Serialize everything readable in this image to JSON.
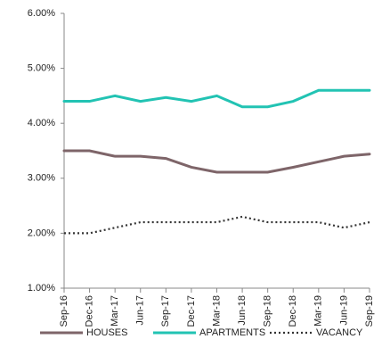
{
  "chart_data": {
    "type": "line",
    "categories": [
      "Sep-16",
      "Dec-16",
      "Mar-17",
      "Jun-17",
      "Sep-17",
      "Dec-17",
      "Mar-18",
      "Jun-18",
      "Sep-18",
      "Dec-18",
      "Mar-19",
      "Jun-19",
      "Sep-19"
    ],
    "series": [
      {
        "name": "HOUSES",
        "color": "#7e6569",
        "style": "solid",
        "values": [
          3.5,
          3.5,
          3.4,
          3.4,
          3.36,
          3.2,
          3.11,
          3.11,
          3.11,
          3.2,
          3.3,
          3.4,
          3.44
        ]
      },
      {
        "name": "APARTMENTS",
        "color": "#22c3b3",
        "style": "solid",
        "values": [
          4.4,
          4.4,
          4.5,
          4.4,
          4.47,
          4.4,
          4.5,
          4.3,
          4.3,
          4.4,
          4.6,
          4.6,
          4.6
        ]
      },
      {
        "name": "VACANCY",
        "color": "#333333",
        "style": "dotted",
        "values": [
          2.0,
          2.0,
          2.1,
          2.2,
          2.2,
          2.2,
          2.2,
          2.3,
          2.2,
          2.2,
          2.2,
          2.1,
          2.2
        ]
      }
    ],
    "ylim": [
      1,
      6
    ],
    "yticks": [
      {
        "value": 1,
        "label": "1.00%"
      },
      {
        "value": 2,
        "label": "2.00%"
      },
      {
        "value": 3,
        "label": "3.00%"
      },
      {
        "value": 4,
        "label": "4.00%"
      },
      {
        "value": 5,
        "label": "5.00%"
      },
      {
        "value": 6,
        "label": "6.00%"
      }
    ],
    "grid": false
  }
}
